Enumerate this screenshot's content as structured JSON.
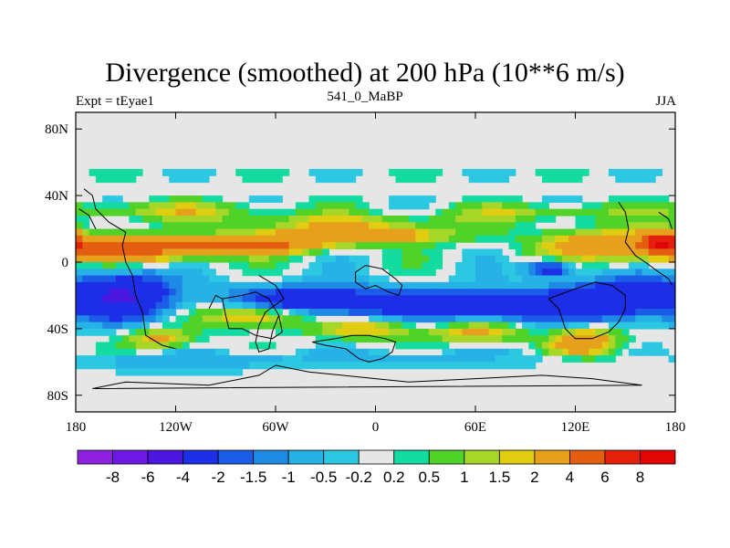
{
  "chart_data": {
    "type": "heatmap",
    "title": "Divergence (smoothed) at 200 hPa (10**6 m/s)",
    "subtitle_left": "Expt = tEyae1",
    "subtitle_center": "541_0_MaBP",
    "subtitle_right": "JJA",
    "x_range": [
      -180,
      180
    ],
    "y_range": [
      -90,
      90
    ],
    "x_ticks": [
      {
        "value": -180,
        "label": "180"
      },
      {
        "value": -120,
        "label": "120W"
      },
      {
        "value": -60,
        "label": "60W"
      },
      {
        "value": 0,
        "label": "0"
      },
      {
        "value": 60,
        "label": "60E"
      },
      {
        "value": 120,
        "label": "120E"
      },
      {
        "value": 180,
        "label": "180"
      }
    ],
    "y_ticks": [
      {
        "value": 80,
        "label": "80N"
      },
      {
        "value": 40,
        "label": "40N"
      },
      {
        "value": 0,
        "label": "0"
      },
      {
        "value": -40,
        "label": "40S"
      },
      {
        "value": -80,
        "label": "80S"
      }
    ],
    "colorbar": {
      "labels": [
        "-8",
        "-6",
        "-4",
        "-2",
        "-1.5",
        "-1",
        "-0.5",
        "-0.2",
        "0.2",
        "0.5",
        "1",
        "1.5",
        "2",
        "4",
        "6",
        "8"
      ],
      "colors": [
        "#8e20e0",
        "#6e18e6",
        "#4a16e0",
        "#1c2ee6",
        "#1a5ce8",
        "#1e8ae6",
        "#26b2e6",
        "#2cc8e2",
        "#e6e6e6",
        "#14dca0",
        "#50d228",
        "#a6d628",
        "#e0cc10",
        "#e6a01c",
        "#e45e12",
        "#e4200c",
        "#e00606"
      ]
    },
    "field_blobs": [
      {
        "name": "nh-jet-band-west",
        "lon": -125,
        "lat": 31,
        "rlon": 65,
        "rlat": 5,
        "v": 1.5
      },
      {
        "name": "nh-jet-band-central",
        "lon": -20,
        "lat": 24,
        "rlon": 75,
        "rlat": 5,
        "v": 1.4
      },
      {
        "name": "nh-jet-band-east",
        "lon": 95,
        "lat": 30,
        "rlon": 55,
        "rlat": 5,
        "v": 1.2
      },
      {
        "name": "nh-divergence-red-west",
        "lon": -145,
        "lat": 8,
        "rlon": 42,
        "rlat": 7,
        "v": 5
      },
      {
        "name": "nh-divergence-red-central",
        "lon": -75,
        "lat": 10,
        "rlon": 40,
        "rlat": 5,
        "v": 4.8
      },
      {
        "name": "nh-divergence-east",
        "lon": -15,
        "lat": 16,
        "rlon": 55,
        "rlat": 5,
        "v": 3.6
      },
      {
        "name": "east-asia-divergence",
        "lon": 140,
        "lat": 10,
        "rlon": 40,
        "rlat": 9,
        "v": 3.2
      },
      {
        "name": "dateline-divergence",
        "lon": 172,
        "lat": 12,
        "rlon": 12,
        "rlat": 7,
        "v": 5.5
      },
      {
        "name": "eq-convergence-pacific",
        "lon": -150,
        "lat": -20,
        "rlon": 30,
        "rlat": 14,
        "v": -3.8
      },
      {
        "name": "eq-convergence-atlantic",
        "lon": -35,
        "lat": -24,
        "rlon": 55,
        "rlat": 10,
        "v": -3.4
      },
      {
        "name": "eq-convergence-indian",
        "lon": 75,
        "lat": -26,
        "rlon": 55,
        "rlat": 10,
        "v": -3.2
      },
      {
        "name": "eq-convergence-westpac",
        "lon": 150,
        "lat": -22,
        "rlon": 35,
        "rlat": 12,
        "v": -3.6
      },
      {
        "name": "convergence-cell-east",
        "lon": 105,
        "lat": -4,
        "rlon": 14,
        "rlat": 5,
        "v": -3.2
      },
      {
        "name": "sh-divergence-south-america",
        "lon": -70,
        "lat": -32,
        "rlon": 30,
        "rlat": 7,
        "v": 3.4
      },
      {
        "name": "sh-divergence-south-atlantic",
        "lon": -5,
        "lat": -40,
        "rlon": 30,
        "rlat": 6,
        "v": 2.2
      },
      {
        "name": "sh-divergence-indian",
        "lon": 60,
        "lat": -42,
        "rlon": 28,
        "rlat": 6,
        "v": 2.3
      },
      {
        "name": "sh-divergence-australia",
        "lon": 125,
        "lat": -48,
        "rlon": 20,
        "rlat": 8,
        "v": 3.4
      },
      {
        "name": "sh-divergence-pacific",
        "lon": -130,
        "lat": -46,
        "rlon": 20,
        "rlat": 6,
        "v": 2.2
      },
      {
        "name": "sh-convergence-band",
        "lon": 20,
        "lat": -58,
        "rlon": 90,
        "rlat": 6,
        "v": -0.7
      },
      {
        "name": "sh-convergence-band-west",
        "lon": -120,
        "lat": -60,
        "rlon": 50,
        "rlat": 6,
        "v": -0.9
      }
    ]
  }
}
